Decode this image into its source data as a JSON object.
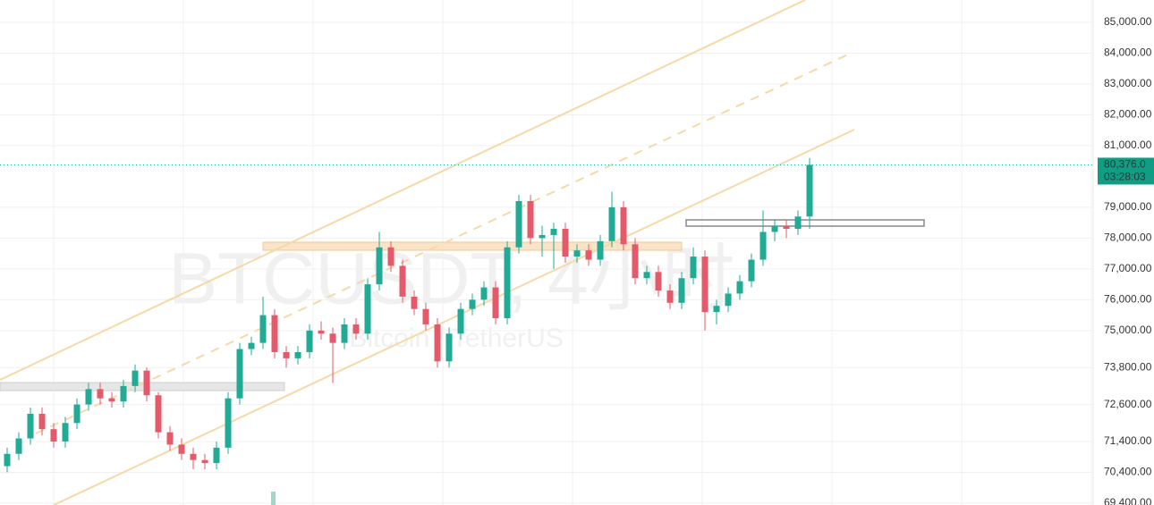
{
  "chart_data": {
    "type": "candlestick",
    "watermark": "BTCUSDT, 4小时",
    "watermark_subtitle": "Bitcoin / TetherUS",
    "up_color": "#22ab94",
    "down_color": "#e45a6a",
    "ylim": [
      69340,
      85725
    ],
    "yticks": [
      {
        "value": 85000,
        "label": "85,000.00"
      },
      {
        "value": 84000,
        "label": "84,000.00"
      },
      {
        "value": 83000,
        "label": "83,000.00"
      },
      {
        "value": 82000,
        "label": "82,000.00"
      },
      {
        "value": 81000,
        "label": "81,000.00"
      },
      {
        "value": 79000,
        "label": "79,000.00"
      },
      {
        "value": 78000,
        "label": "78,000.00"
      },
      {
        "value": 77000,
        "label": "77,000.00"
      },
      {
        "value": 76000,
        "label": "76,000.00"
      },
      {
        "value": 75000,
        "label": "75,000.00"
      },
      {
        "value": 73800,
        "label": "73,800.00"
      },
      {
        "value": 72600,
        "label": "72,600.00"
      },
      {
        "value": 71400,
        "label": "71,400.00"
      },
      {
        "value": 70400,
        "label": "70,400.00"
      },
      {
        "value": 69400,
        "label": "69,400.00"
      }
    ],
    "grid": true,
    "last_price": {
      "value": 80376,
      "label": "80,376.0"
    },
    "countdown": "03:28:03",
    "candles": [
      [
        70600,
        71200,
        70400,
        71000
      ],
      [
        71000,
        71700,
        70800,
        71500
      ],
      [
        71500,
        72500,
        71300,
        72300
      ],
      [
        72300,
        72500,
        71600,
        71800
      ],
      [
        71800,
        72000,
        71200,
        71400
      ],
      [
        71400,
        72200,
        71200,
        72000
      ],
      [
        72000,
        72800,
        71800,
        72600
      ],
      [
        72600,
        73300,
        72400,
        73100
      ],
      [
        73100,
        73300,
        72600,
        72800
      ],
      [
        72800,
        73000,
        72500,
        72700
      ],
      [
        72700,
        73400,
        72500,
        73200
      ],
      [
        73200,
        73900,
        73000,
        73700
      ],
      [
        73700,
        73800,
        72700,
        72900
      ],
      [
        72900,
        73000,
        71500,
        71700
      ],
      [
        71700,
        71900,
        71100,
        71300
      ],
      [
        71300,
        71500,
        70800,
        71000
      ],
      [
        71000,
        71200,
        70500,
        70800
      ],
      [
        70800,
        71000,
        70500,
        70700
      ],
      [
        70700,
        71400,
        70500,
        71200
      ],
      [
        71200,
        73000,
        71000,
        72800
      ],
      [
        72800,
        74600,
        72600,
        74400
      ],
      [
        74400,
        74800,
        74200,
        74600
      ],
      [
        74600,
        76100,
        74400,
        75500
      ],
      [
        75500,
        75700,
        74100,
        74300
      ],
      [
        74300,
        74500,
        73800,
        74100
      ],
      [
        74100,
        74500,
        73900,
        74300
      ],
      [
        74300,
        75200,
        74100,
        75000
      ],
      [
        75000,
        75300,
        74700,
        74900
      ],
      [
        74900,
        75100,
        73300,
        74600
      ],
      [
        74600,
        75400,
        74400,
        75200
      ],
      [
        75200,
        75400,
        74700,
        74900
      ],
      [
        74900,
        76700,
        74700,
        76500
      ],
      [
        76500,
        78200,
        76300,
        77700
      ],
      [
        77700,
        77900,
        76900,
        77100
      ],
      [
        77100,
        77300,
        75900,
        76100
      ],
      [
        76100,
        76300,
        75500,
        75700
      ],
      [
        75700,
        75900,
        75000,
        75200
      ],
      [
        75200,
        75400,
        73800,
        74000
      ],
      [
        74000,
        75100,
        73800,
        74900
      ],
      [
        74900,
        75900,
        74700,
        75700
      ],
      [
        75700,
        76200,
        75500,
        76000
      ],
      [
        76000,
        76600,
        75800,
        76400
      ],
      [
        76400,
        76600,
        75200,
        75400
      ],
      [
        75400,
        77900,
        75200,
        77700
      ],
      [
        77700,
        79400,
        77500,
        79200
      ],
      [
        79200,
        79400,
        77800,
        78000
      ],
      [
        78000,
        78400,
        77400,
        78100
      ],
      [
        78100,
        78500,
        77000,
        78300
      ],
      [
        78300,
        78500,
        77200,
        77400
      ],
      [
        77400,
        77800,
        77200,
        77600
      ],
      [
        77600,
        77800,
        77100,
        77300
      ],
      [
        77300,
        78100,
        77100,
        77900
      ],
      [
        77900,
        79500,
        77700,
        79000
      ],
      [
        79000,
        79200,
        77600,
        77800
      ],
      [
        77800,
        78000,
        76500,
        76700
      ],
      [
        76700,
        77100,
        76500,
        76900
      ],
      [
        76900,
        77100,
        76100,
        76300
      ],
      [
        76300,
        76500,
        75700,
        75900
      ],
      [
        75900,
        76900,
        75700,
        76700
      ],
      [
        76700,
        77700,
        76500,
        77400
      ],
      [
        77400,
        77600,
        75000,
        75600
      ],
      [
        75600,
        76000,
        75200,
        75800
      ],
      [
        75800,
        76400,
        75600,
        76200
      ],
      [
        76200,
        76800,
        76000,
        76600
      ],
      [
        76600,
        77500,
        76400,
        77300
      ],
      [
        77300,
        78900,
        77100,
        78200
      ],
      [
        78200,
        78600,
        77900,
        78400
      ],
      [
        78400,
        78600,
        78000,
        78300
      ],
      [
        78300,
        78900,
        78100,
        78700
      ],
      [
        78700,
        80600,
        78300,
        80376
      ]
    ]
  }
}
